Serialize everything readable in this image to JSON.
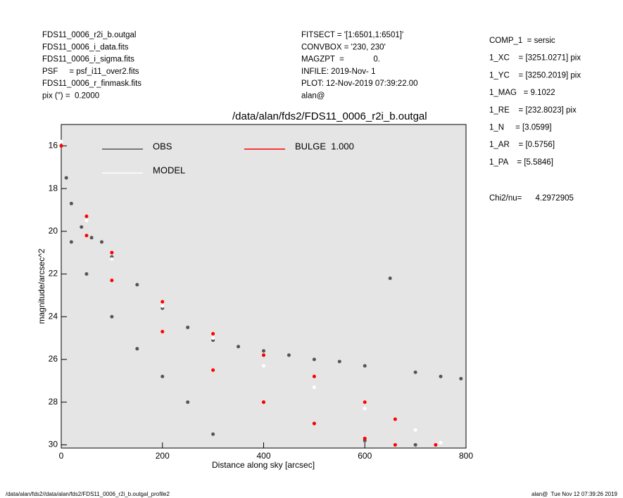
{
  "header": {
    "left": [
      "FDS11_0006_r2i_b.outgal",
      "FDS11_0006_i_data.fits",
      "FDS11_0006_i_sigma.fits",
      "PSF     = psf_i11_over2.fits",
      "FDS11_0006_r_finmask.fits",
      "pix (\") =  0.2000"
    ],
    "middle": [
      "FITSECT = '[1:6501,1:6501]'",
      "CONVBOX = '230, 230'",
      "MAGZPT  =             0.",
      "INFILE: 2019-Nov- 1",
      "PLOT: 12-Nov-2019 07:39:22.00",
      "alan@"
    ],
    "right": [
      "COMP_1  = sersic",
      "1_XC    = [3251.0271] pix",
      "1_YC    = [3250.2019] pix",
      "1_MAG   = 9.1022",
      "1_RE    = [232.8023] pix",
      "1_N     = [3.0599]",
      "1_AR    = [0.5756]",
      "1_PA    = [5.5846]"
    ],
    "chi2": "Chi2/nu=      4.2972905"
  },
  "footer": {
    "left": "/data/alan/fds2//data/alan/fds2/FDS11_0006_r2i_b.outgal_profile2",
    "right": "alan@  Tue Nov 12 07:39:26 2019"
  },
  "chart_data": {
    "type": "scatter",
    "title": "/data/alan/fds2/FDS11_0006_r2i_b.outgal",
    "x_label": "Distance along sky [arcsec]",
    "y_label": "magnitude/arcsec^2",
    "xlim": [
      0,
      800
    ],
    "xticks": [
      0,
      200,
      400,
      600,
      800
    ],
    "ylim": [
      15,
      30.15
    ],
    "yticks": [
      16,
      18,
      20,
      22,
      24,
      26,
      28,
      30
    ],
    "y_inverted": true,
    "background": "#e5e5e5",
    "series": [
      {
        "name": "OBS",
        "color": "#555555",
        "x": [
          0,
          10,
          20,
          40,
          60,
          80,
          100,
          150,
          200,
          250,
          300,
          350,
          400,
          450,
          500,
          550,
          600,
          650,
          700,
          750,
          790,
          20,
          50,
          100,
          150,
          200,
          250,
          300,
          400,
          500,
          600,
          700
        ],
        "values": [
          16,
          17.5,
          18.7,
          19.8,
          20.3,
          20.5,
          21.2,
          22.5,
          23.6,
          24.5,
          25.1,
          25.4,
          25.6,
          25.8,
          26,
          26.1,
          26.3,
          22.2,
          26.6,
          26.8,
          26.9,
          20.5,
          22,
          24,
          25.5,
          26.8,
          28,
          29.5,
          28,
          29,
          29.8,
          30
        ]
      },
      {
        "name": "MODEL",
        "color": "#ffffff",
        "x": [
          0,
          50,
          100,
          200,
          300,
          400,
          500,
          600,
          700,
          750
        ],
        "values": [
          15.8,
          19.5,
          21.3,
          23.5,
          25,
          26.3,
          27.3,
          28.3,
          29.3,
          29.9
        ]
      },
      {
        "name": "BULGE  1.000",
        "color": "#ff0000",
        "x": [
          0,
          50,
          100,
          200,
          300,
          400,
          500,
          600,
          660,
          740,
          50,
          100,
          200,
          300,
          400,
          500,
          600,
          660
        ],
        "values": [
          16,
          19.3,
          21,
          23.3,
          24.8,
          25.8,
          26.8,
          28,
          28.8,
          30,
          20.2,
          22.3,
          24.7,
          26.5,
          28,
          29,
          29.7,
          30
        ]
      }
    ]
  }
}
